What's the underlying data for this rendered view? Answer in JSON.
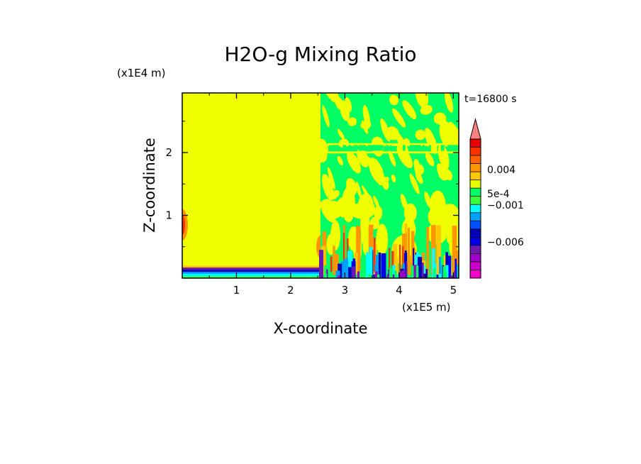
{
  "chart_data": {
    "type": "heatmap",
    "title": "H2O-g Mixing Ratio",
    "xlabel": "X-coordinate",
    "ylabel": "Z-coordinate",
    "x_scale_label": "(x1E5 m)",
    "y_scale_label": "(x1E4 m)",
    "time_label": "t=16800 s",
    "xlim": [
      0,
      5.1
    ],
    "ylim": [
      0,
      2.95
    ],
    "x_ticks": [
      1,
      2,
      3,
      4,
      5
    ],
    "x_tick_labels": [
      "1",
      "2",
      "3",
      "4",
      "5"
    ],
    "y_ticks": [
      1,
      2
    ],
    "y_tick_labels": [
      "1",
      "2"
    ],
    "colorbar": {
      "colors": [
        "#f000c8",
        "#c800c8",
        "#a000c8",
        "#6c18b0",
        "#0000e8",
        "#0000b4",
        "#0050ff",
        "#00a0ff",
        "#00ffff",
        "#3cff3c",
        "#00ff64",
        "#e6ff00",
        "#ffc800",
        "#ff9600",
        "#ff6400",
        "#ff3200",
        "#e60000",
        "#ff8080"
      ],
      "labels": [
        {
          "text": "0.004",
          "level": 0.004
        },
        {
          "text": "5e-4",
          "level": 0.0005
        },
        {
          "text": "−0.001",
          "level": -0.001
        },
        {
          "text": "−0.006",
          "level": -0.006
        }
      ],
      "extend": "max"
    },
    "regions": [
      {
        "name": "dry-left-domain",
        "x": [
          0,
          2.55
        ],
        "z": [
          0.16,
          2.95
        ],
        "value": 0.0
      },
      {
        "name": "surface-moist-layer",
        "x": [
          0,
          2.55
        ],
        "z": [
          0.05,
          0.16
        ],
        "value": -0.006
      },
      {
        "name": "convective-right-domain",
        "x": [
          2.55,
          5.1
        ],
        "z": [
          0,
          2.95
        ],
        "value": 0.0005
      }
    ]
  }
}
